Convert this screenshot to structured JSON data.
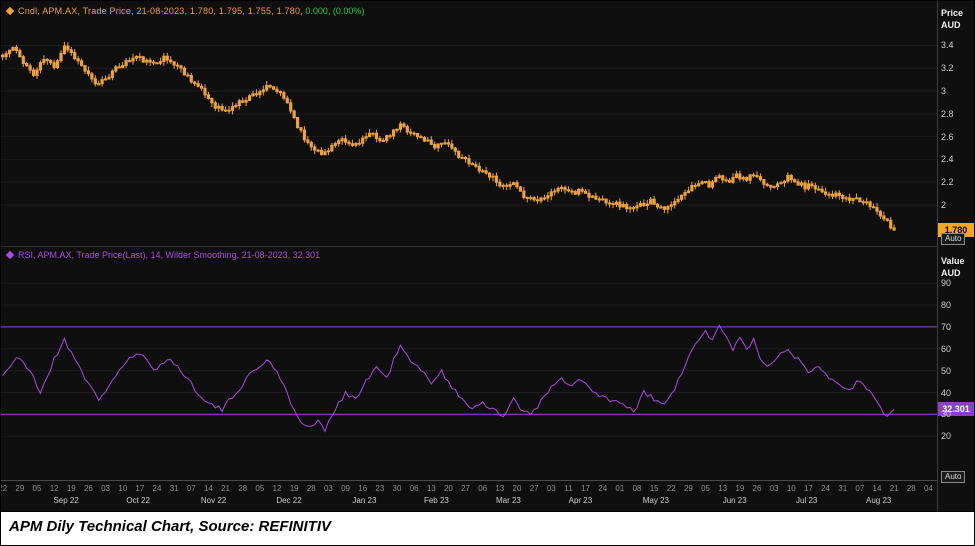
{
  "caption": "APM Dily Technical Chart, Source: REFINITIV",
  "price_panel": {
    "legend_main": "Cndl, APM.AX, Trade Price, 21-08-2023, 1.780, 1.795, 1.755, 1.780,",
    "legend_change": "0.000, (0.00%)",
    "axis_title": "Price\nAUD",
    "ticks": [
      3.4,
      3.2,
      3,
      2.8,
      2.6,
      2.4,
      2.2,
      2
    ],
    "last_price_label": "1.780",
    "auto_label": "Auto",
    "candle_color": "#eda33b",
    "change_color": "#2ecc40",
    "badge_color": "#f5a623",
    "range": [
      1.64,
      3.79
    ]
  },
  "rsi_panel": {
    "legend": "RSI, APM.AX, Trade Price(Last),  14, Wilder Smoothing,  21-08-2023, 32.301",
    "axis_title": "Value\nAUD",
    "ticks": [
      90,
      80,
      70,
      60,
      50,
      40,
      30,
      20
    ],
    "last_value_label": "32.301",
    "auto_label": "Auto",
    "line_color": "#a94ae0",
    "band_color": "#7e3aa8",
    "badge_color": "#8a3fc6",
    "band_upper": 70,
    "band_lower": 30,
    "range": [
      0,
      107
    ]
  },
  "x_axis": {
    "week_labels": [
      "22",
      "29",
      "05",
      "12",
      "19",
      "26",
      "03",
      "10",
      "17",
      "24",
      "31",
      "07",
      "14",
      "21",
      "28",
      "05",
      "12",
      "19",
      "28",
      "03",
      "09",
      "16",
      "23",
      "30",
      "06",
      "13",
      "20",
      "27",
      "06",
      "13",
      "20",
      "27",
      "03",
      "11",
      "17",
      "24",
      "01",
      "08",
      "15",
      "22",
      "29",
      "05",
      "13",
      "19",
      "26",
      "03",
      "10",
      "17",
      "24",
      "31",
      "07",
      "14",
      "21",
      "28",
      "04"
    ],
    "month_labels": [
      {
        "label": "Sep 22",
        "day": 19
      },
      {
        "label": "Oct 22",
        "day": 40
      },
      {
        "label": "Nov 22",
        "day": 62
      },
      {
        "label": "Dec 22",
        "day": 84
      },
      {
        "label": "Jan 23",
        "day": 106
      },
      {
        "label": "Feb 23",
        "day": 127
      },
      {
        "label": "Mar 23",
        "day": 148
      },
      {
        "label": "Apr 23",
        "day": 169
      },
      {
        "label": "May 23",
        "day": 191
      },
      {
        "label": "Jun 23",
        "day": 214
      },
      {
        "label": "Jul 23",
        "day": 235
      },
      {
        "label": "Aug 23",
        "day": 256
      }
    ]
  },
  "chart_data": {
    "type": "candlestick+line",
    "trading_days": 261,
    "axis_total_days": 273,
    "panels": [
      {
        "name": "price",
        "instrument": "APM.AX",
        "series": "Daily candlesticks, Trade Price",
        "yticks": [
          3.4,
          3.2,
          3,
          2.8,
          2.6,
          2.4,
          2.2,
          2
        ],
        "last": {
          "open": 1.78,
          "high": 1.795,
          "low": 1.755,
          "close": 1.78,
          "net_change": 0.0,
          "pct_change": "0.00%"
        }
      },
      {
        "name": "rsi",
        "series": "RSI 14, Wilder Smoothing",
        "yticks": [
          90,
          80,
          70,
          60,
          50,
          40,
          30,
          20
        ],
        "overbought": 70,
        "oversold": 30,
        "last": 32.301
      }
    ],
    "price_close_keypoints": [
      [
        0,
        3.3
      ],
      [
        3,
        3.38
      ],
      [
        6,
        3.26
      ],
      [
        9,
        3.14
      ],
      [
        12,
        3.28
      ],
      [
        15,
        3.22
      ],
      [
        18,
        3.4
      ],
      [
        21,
        3.3
      ],
      [
        24,
        3.18
      ],
      [
        27,
        3.05
      ],
      [
        31,
        3.14
      ],
      [
        35,
        3.24
      ],
      [
        39,
        3.3
      ],
      [
        43,
        3.24
      ],
      [
        47,
        3.29
      ],
      [
        51,
        3.22
      ],
      [
        55,
        3.1
      ],
      [
        59,
        2.97
      ],
      [
        62,
        2.87
      ],
      [
        65,
        2.82
      ],
      [
        69,
        2.9
      ],
      [
        73,
        2.97
      ],
      [
        77,
        3.03
      ],
      [
        80,
        3.0
      ],
      [
        83,
        2.9
      ],
      [
        86,
        2.7
      ],
      [
        88,
        2.58
      ],
      [
        91,
        2.5
      ],
      [
        93,
        2.44
      ],
      [
        96,
        2.52
      ],
      [
        99,
        2.56
      ],
      [
        102,
        2.52
      ],
      [
        105,
        2.58
      ],
      [
        108,
        2.62
      ],
      [
        111,
        2.56
      ],
      [
        114,
        2.64
      ],
      [
        116,
        2.7
      ],
      [
        119,
        2.64
      ],
      [
        121,
        2.6
      ],
      [
        124,
        2.56
      ],
      [
        126,
        2.52
      ],
      [
        129,
        2.56
      ],
      [
        131,
        2.48
      ],
      [
        134,
        2.42
      ],
      [
        136,
        2.36
      ],
      [
        139,
        2.32
      ],
      [
        141,
        2.28
      ],
      [
        144,
        2.22
      ],
      [
        146,
        2.15
      ],
      [
        149,
        2.18
      ],
      [
        151,
        2.1
      ],
      [
        154,
        2.06
      ],
      [
        156,
        2.04
      ],
      [
        159,
        2.1
      ],
      [
        162,
        2.15
      ],
      [
        165,
        2.13
      ],
      [
        167,
        2.1
      ],
      [
        169,
        2.13
      ],
      [
        171,
        2.08
      ],
      [
        174,
        2.05
      ],
      [
        176,
        2.04
      ],
      [
        179,
        2.01
      ],
      [
        181,
        1.99
      ],
      [
        184,
        1.96
      ],
      [
        186,
        2.0
      ],
      [
        189,
        2.04
      ],
      [
        191,
        2.0
      ],
      [
        194,
        1.97
      ],
      [
        196,
        2.02
      ],
      [
        199,
        2.1
      ],
      [
        201,
        2.16
      ],
      [
        204,
        2.22
      ],
      [
        206,
        2.18
      ],
      [
        209,
        2.24
      ],
      [
        211,
        2.2
      ],
      [
        214,
        2.26
      ],
      [
        216,
        2.22
      ],
      [
        219,
        2.26
      ],
      [
        221,
        2.2
      ],
      [
        224,
        2.16
      ],
      [
        226,
        2.2
      ],
      [
        229,
        2.24
      ],
      [
        231,
        2.2
      ],
      [
        234,
        2.16
      ],
      [
        236,
        2.18
      ],
      [
        239,
        2.12
      ],
      [
        241,
        2.1
      ],
      [
        244,
        2.08
      ],
      [
        246,
        2.04
      ],
      [
        249,
        2.06
      ],
      [
        251,
        2.02
      ],
      [
        254,
        1.98
      ],
      [
        256,
        1.92
      ],
      [
        258,
        1.86
      ],
      [
        260,
        1.78
      ]
    ],
    "rsi_keypoints": [
      [
        0,
        48
      ],
      [
        4,
        56
      ],
      [
        8,
        50
      ],
      [
        11,
        40
      ],
      [
        15,
        55
      ],
      [
        18,
        64
      ],
      [
        21,
        56
      ],
      [
        25,
        44
      ],
      [
        28,
        36
      ],
      [
        32,
        46
      ],
      [
        36,
        54
      ],
      [
        40,
        58
      ],
      [
        44,
        50
      ],
      [
        48,
        56
      ],
      [
        52,
        50
      ],
      [
        56,
        42
      ],
      [
        60,
        35
      ],
      [
        64,
        32
      ],
      [
        68,
        40
      ],
      [
        72,
        48
      ],
      [
        77,
        55
      ],
      [
        80,
        50
      ],
      [
        83,
        40
      ],
      [
        86,
        28
      ],
      [
        89,
        24
      ],
      [
        92,
        27
      ],
      [
        94,
        22
      ],
      [
        97,
        33
      ],
      [
        100,
        40
      ],
      [
        103,
        37
      ],
      [
        106,
        45
      ],
      [
        109,
        52
      ],
      [
        112,
        46
      ],
      [
        114,
        55
      ],
      [
        116,
        61
      ],
      [
        119,
        54
      ],
      [
        122,
        50
      ],
      [
        125,
        45
      ],
      [
        128,
        50
      ],
      [
        131,
        42
      ],
      [
        134,
        37
      ],
      [
        137,
        33
      ],
      [
        140,
        36
      ],
      [
        143,
        32
      ],
      [
        146,
        28
      ],
      [
        149,
        38
      ],
      [
        151,
        33
      ],
      [
        154,
        30
      ],
      [
        157,
        36
      ],
      [
        160,
        42
      ],
      [
        163,
        46
      ],
      [
        166,
        43
      ],
      [
        169,
        46
      ],
      [
        172,
        40
      ],
      [
        175,
        38
      ],
      [
        178,
        36
      ],
      [
        181,
        34
      ],
      [
        184,
        31
      ],
      [
        187,
        40
      ],
      [
        190,
        37
      ],
      [
        193,
        34
      ],
      [
        196,
        42
      ],
      [
        199,
        52
      ],
      [
        202,
        62
      ],
      [
        205,
        68
      ],
      [
        207,
        64
      ],
      [
        209,
        70
      ],
      [
        211,
        65
      ],
      [
        213,
        60
      ],
      [
        215,
        66
      ],
      [
        217,
        60
      ],
      [
        219,
        64
      ],
      [
        221,
        55
      ],
      [
        224,
        52
      ],
      [
        226,
        56
      ],
      [
        229,
        60
      ],
      [
        232,
        55
      ],
      [
        235,
        50
      ],
      [
        238,
        53
      ],
      [
        241,
        47
      ],
      [
        244,
        44
      ],
      [
        247,
        42
      ],
      [
        250,
        45
      ],
      [
        253,
        40
      ],
      [
        256,
        34
      ],
      [
        258,
        28
      ],
      [
        260,
        32.301
      ]
    ]
  }
}
